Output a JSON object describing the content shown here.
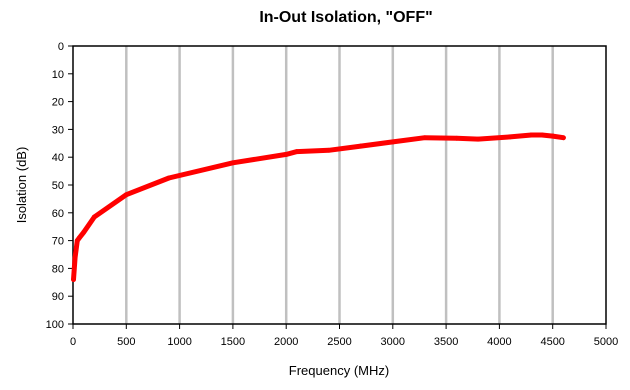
{
  "chart_data": {
    "type": "line",
    "title": "In-Out Isolation, \"OFF\"",
    "xlabel": "Frequency (MHz)",
    "ylabel": "Isolation (dB)",
    "xlim": [
      0,
      5000
    ],
    "ylim": [
      0,
      100
    ],
    "y_inverted": true,
    "xticks": [
      0,
      500,
      1000,
      1500,
      2000,
      2500,
      3000,
      3500,
      4000,
      4500,
      5000
    ],
    "yticks": [
      0,
      10,
      20,
      30,
      40,
      50,
      60,
      70,
      80,
      90,
      100
    ],
    "grid": {
      "vertical": true,
      "horizontal": false
    },
    "legend": "none",
    "series": [
      {
        "color": "#ff0000",
        "x": [
          5,
          20,
          40,
          60,
          100,
          200,
          500,
          900,
          1500,
          2000,
          2100,
          2400,
          2700,
          3000,
          3300,
          3600,
          3800,
          4100,
          4300,
          4400,
          4500,
          4600
        ],
        "values": [
          84,
          76,
          70,
          69,
          67,
          61.5,
          53.5,
          47.5,
          42,
          39,
          38,
          37.5,
          36,
          34.5,
          33,
          33.2,
          33.5,
          32.7,
          32,
          32,
          32.4,
          33
        ]
      }
    ]
  }
}
